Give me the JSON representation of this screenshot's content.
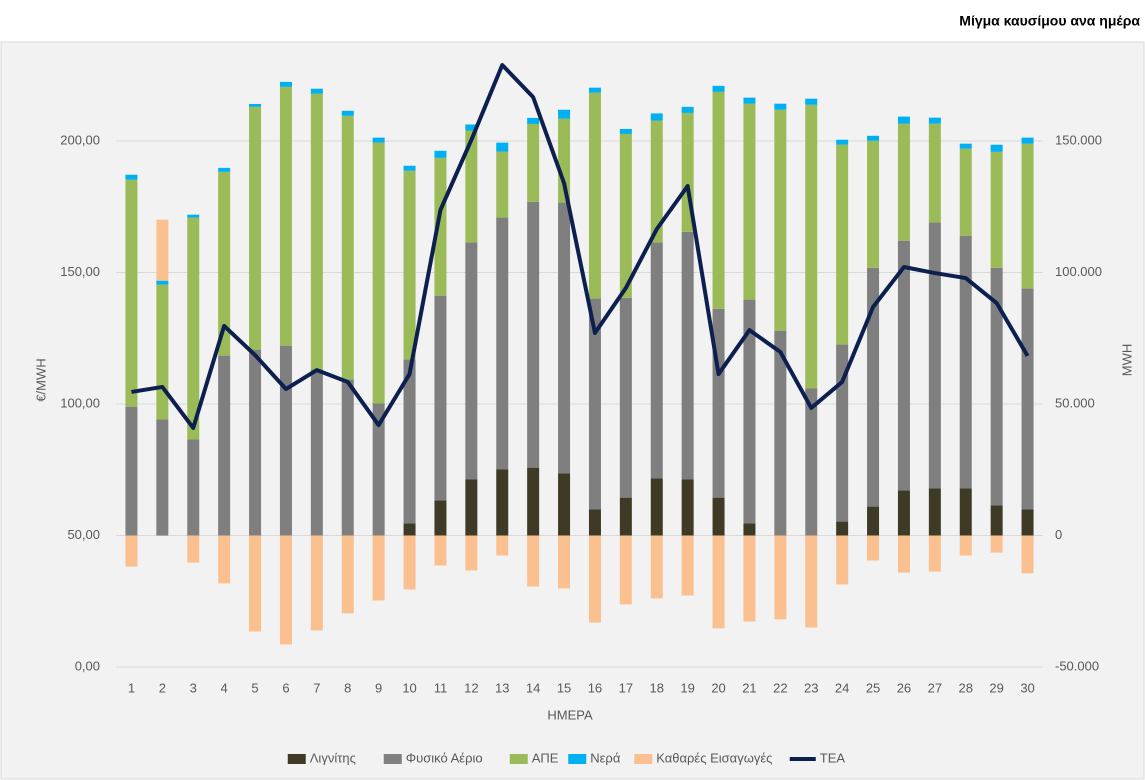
{
  "chart_data": {
    "type": "bar",
    "title": "Μίγμα καυσίμου ανα ημέρα",
    "xlabel": "ΗΜΕΡΑ",
    "ylabel": "€/MWH",
    "y2label": "MWH",
    "categories": [
      "1",
      "2",
      "3",
      "4",
      "5",
      "6",
      "7",
      "8",
      "9",
      "10",
      "11",
      "12",
      "13",
      "14",
      "15",
      "16",
      "17",
      "18",
      "19",
      "20",
      "21",
      "22",
      "23",
      "24",
      "25",
      "26",
      "27",
      "28",
      "29",
      "30"
    ],
    "stacked": true,
    "legend": "bottom",
    "ylim": [
      0,
      235
    ],
    "yticks": [
      {
        "value": 0,
        "label": "0,00"
      },
      {
        "value": 50,
        "label": "50,00"
      },
      {
        "value": 100,
        "label": "100,00"
      },
      {
        "value": 150,
        "label": "150,00"
      },
      {
        "value": 200,
        "label": "200,00"
      }
    ],
    "y2lim": [
      -50000,
      185000
    ],
    "y2ticks": [
      {
        "value": -50000,
        "label": "-50.000"
      },
      0,
      {
        "value": 50000,
        "label": "50.000"
      },
      {
        "value": 100000,
        "label": "100.000"
      },
      {
        "value": 150000,
        "label": "150.000"
      }
    ],
    "series": [
      {
        "name": "Λιγνίτης",
        "color": "#3f3a25",
        "axis": "y2",
        "values": [
          0,
          0,
          0,
          0,
          0,
          0,
          0,
          0,
          0,
          4600,
          13300,
          21300,
          25100,
          25800,
          23600,
          9900,
          14400,
          21700,
          21300,
          14400,
          4600,
          0,
          0,
          5300,
          11000,
          17100,
          17900,
          17900,
          11400,
          9900
        ]
      },
      {
        "name": "Φυσικό Αέριο",
        "color": "#7f7f7f",
        "axis": "y2",
        "values": [
          49000,
          44100,
          36500,
          68400,
          70700,
          72200,
          63100,
          59300,
          50200,
          62300,
          77900,
          90100,
          95800,
          101100,
          103000,
          80200,
          76000,
          89700,
          94200,
          71800,
          85100,
          77900,
          55900,
          67300,
          90800,
          95000,
          101100,
          96100,
          90400,
          84000
        ]
      },
      {
        "name": "ΑΠΕ",
        "color": "#9bbb59",
        "axis": "y2",
        "values": [
          86300,
          51300,
          84400,
          69900,
          92300,
          98400,
          104900,
          100300,
          99200,
          71800,
          52400,
          42600,
          25100,
          29600,
          31900,
          78300,
          62300,
          46400,
          45200,
          82500,
          74500,
          84000,
          107900,
          76000,
          48300,
          44500,
          37600,
          33100,
          44100,
          55100
        ]
      },
      {
        "name": "Νερά",
        "color": "#00b0f0",
        "axis": "y2",
        "values": [
          1900,
          1500,
          1100,
          1500,
          1100,
          1900,
          1900,
          1900,
          1900,
          1900,
          2700,
          2300,
          3400,
          2300,
          3400,
          1900,
          1900,
          2700,
          2300,
          2300,
          2300,
          2300,
          2300,
          1900,
          1900,
          2700,
          2300,
          1900,
          2700,
          2300
        ]
      },
      {
        "name": "Καθαρές Εισαγωγές",
        "color": "#fac090",
        "axis": "y2",
        "values": [
          -11800,
          23200,
          -10300,
          -18200,
          -36500,
          -41400,
          -36100,
          -29600,
          -24700,
          -20500,
          -11400,
          -13300,
          -7600,
          -19400,
          -20100,
          -33100,
          -26200,
          -23900,
          -22800,
          -35300,
          -32700,
          -31900,
          -35000,
          -18600,
          -9500,
          -14100,
          -13700,
          -7600,
          -6500,
          -14400
        ]
      },
      {
        "name": "ΤΕΑ",
        "color": "#0c1f4f",
        "axis": "y",
        "kind": "line",
        "values": [
          104.6,
          106.5,
          90.9,
          129.7,
          118.6,
          105.7,
          112.9,
          108.4,
          92.0,
          111.4,
          173.8,
          200.4,
          228.9,
          216.7,
          184.0,
          127.0,
          144.1,
          166.5,
          182.9,
          111.4,
          128.1,
          119.8,
          98.5,
          108.4,
          136.9,
          152.1,
          149.8,
          147.9,
          138.4,
          118.3
        ]
      }
    ]
  }
}
